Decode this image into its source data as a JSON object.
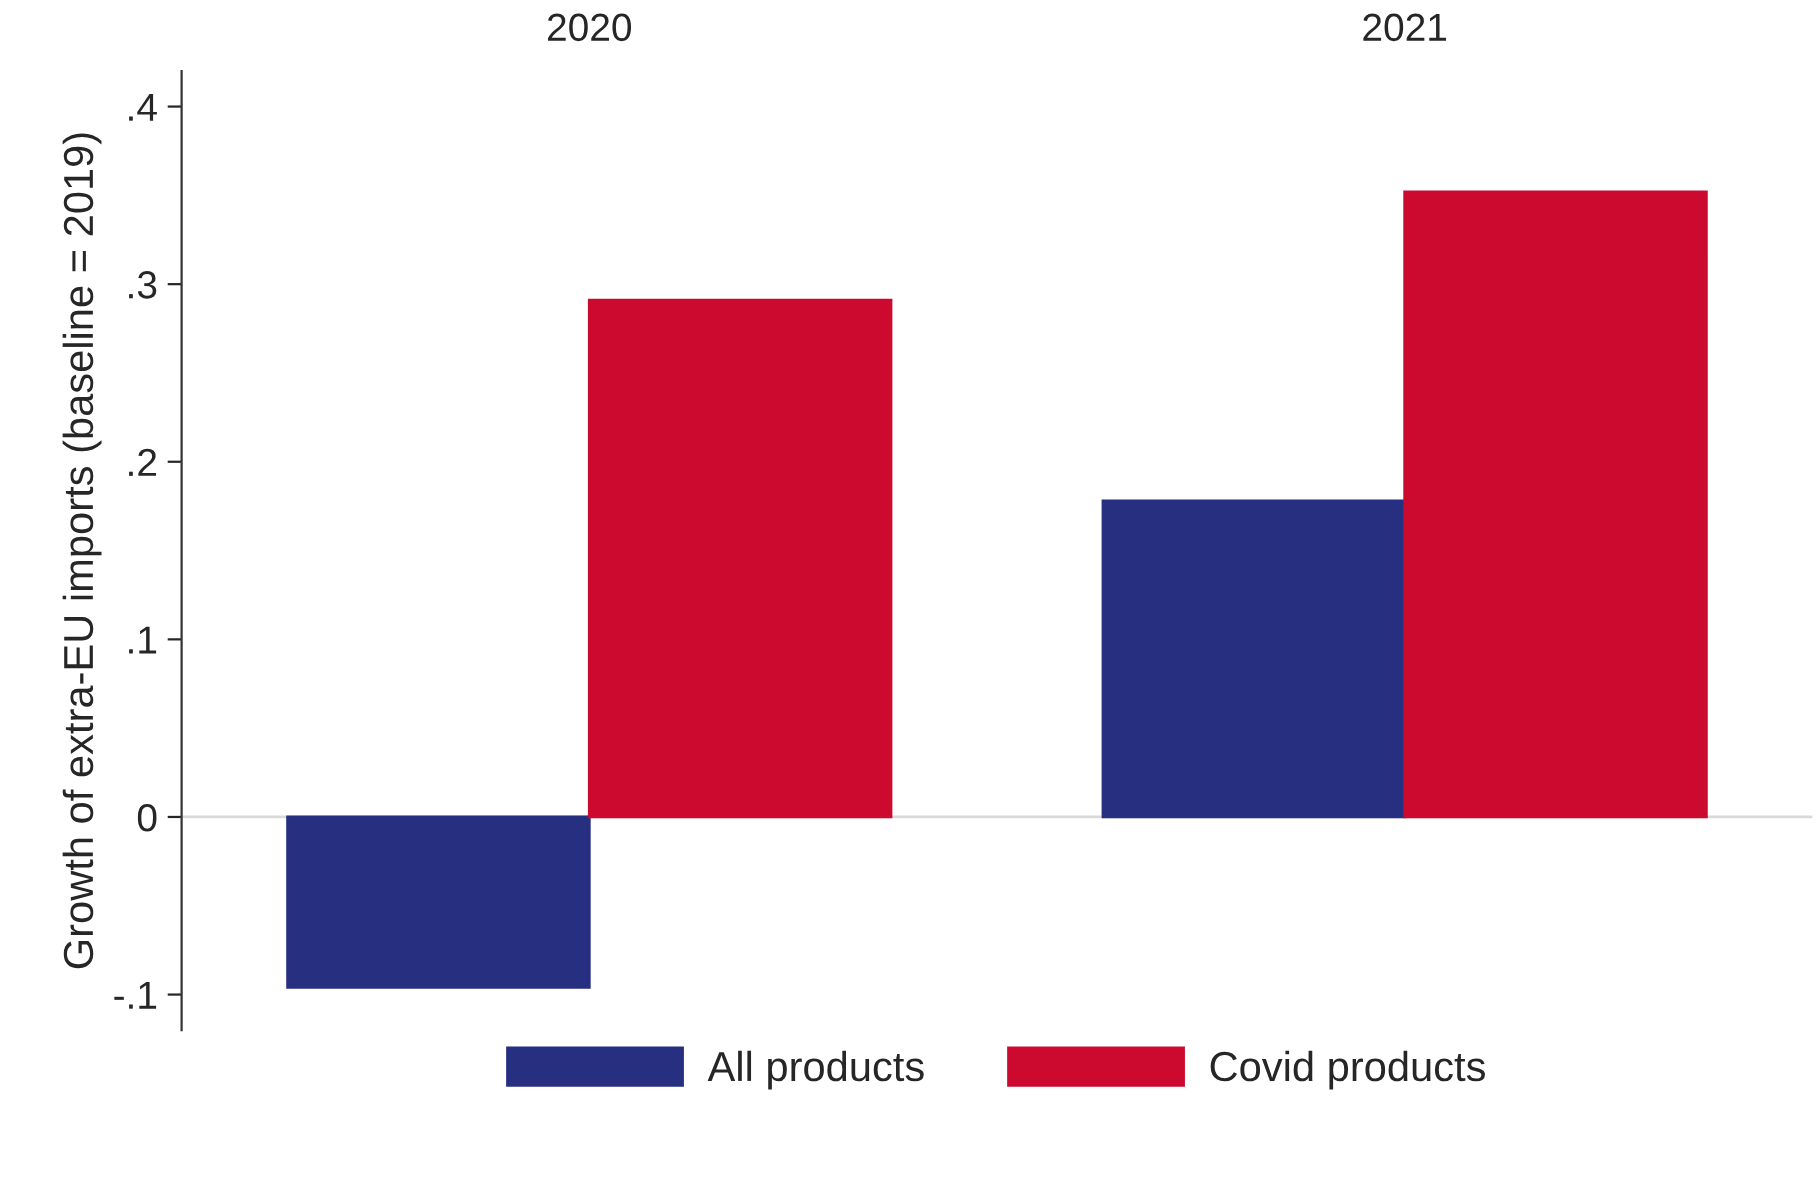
{
  "chart_data": {
    "type": "bar",
    "ylabel": "Growth of extra-EU imports (baseline = 2019)",
    "categories": [
      "2020",
      "2021"
    ],
    "series": [
      {
        "name": "All products",
        "color": "#262f80",
        "values": [
          -0.096,
          0.178
        ]
      },
      {
        "name": "Covid products",
        "color": "#cc0a2f",
        "values": [
          0.291,
          0.352
        ]
      }
    ],
    "ylim": [
      -0.12,
      0.42
    ],
    "yticks": [
      {
        "value": -0.1,
        "label": "-.1"
      },
      0,
      {
        "value": 0.1,
        "label": ".1"
      },
      {
        "value": 0.2,
        "label": ".2"
      },
      {
        "value": 0.3,
        "label": ".3"
      },
      {
        "value": 0.4,
        "label": ".4"
      }
    ],
    "ref_lines": [
      {
        "axis": "y",
        "value": 0,
        "color": "#d9d9d9"
      }
    ],
    "legend": "bottom",
    "grid": false
  }
}
